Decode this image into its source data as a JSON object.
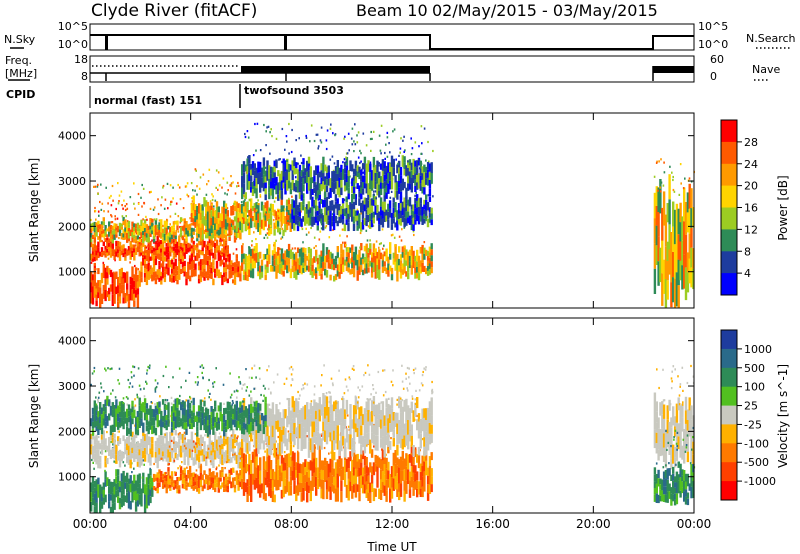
{
  "header": {
    "station": "Clyde River (fitACF)",
    "beam": "Beam 10",
    "dates": "02/May/2015 - 03/May/2015"
  },
  "strip_panels": {
    "nsky_label": "N.Sky",
    "nsky_ticks": [
      "10^5",
      "10^0"
    ],
    "freq_label_line1": "Freq.",
    "freq_label_line2": "[MHz]",
    "freq_ticks": [
      "18",
      "8"
    ],
    "nsearch_label": "N.Search",
    "nsearch_ticks": [
      "10^5",
      "10^0"
    ],
    "nave_label": "Nave",
    "nave_ticks": [
      "60",
      "0"
    ],
    "cpid_label": "CPID",
    "cpid_modes": [
      {
        "name": "normal (fast) 151",
        "start_hour": 0
      },
      {
        "name": "twofsound 3503",
        "start_hour": 6
      }
    ]
  },
  "power_colorbar": {
    "title": "Power [dB]",
    "ticks": [
      "28",
      "24",
      "20",
      "16",
      "12",
      "8",
      "4"
    ],
    "colors": [
      "#ff0000",
      "#ff5a00",
      "#ff9a00",
      "#ffd400",
      "#9ccc22",
      "#2e8b57",
      "#1e3c9e",
      "#0000ff"
    ]
  },
  "velocity_colorbar": {
    "title": "Velocity [m s^-1]",
    "ticks": [
      "1000",
      "500",
      "100",
      "25",
      "-25",
      "-100",
      "-500",
      "-1000"
    ],
    "colors": [
      "#1e3c9e",
      "#2a6a8a",
      "#2e8b57",
      "#52c020",
      "#c9c9c0",
      "#ffb100",
      "#ff7a00",
      "#ff4000",
      "#ff0000"
    ]
  },
  "chart_data": {
    "type": "heatmap",
    "xlabel": "Time UT",
    "ylabel": "Slant Range [km]",
    "x_ticks": [
      "00:00",
      "04:00",
      "08:00",
      "12:00",
      "16:00",
      "20:00",
      "00:00"
    ],
    "xlim_hours": [
      0,
      24
    ],
    "ylim_km": [
      200,
      4500
    ],
    "y_ticks": [
      1000,
      2000,
      3000,
      4000
    ],
    "data_gaps_hours": [
      [
        13.6,
        22.4
      ]
    ],
    "power_bands": [
      {
        "t0": 0.0,
        "t1": 2.0,
        "r0": 300,
        "r1": 1000,
        "level": "high"
      },
      {
        "t0": 0.0,
        "t1": 5.5,
        "r0": 1300,
        "r1": 1700,
        "level": "high"
      },
      {
        "t0": 2.0,
        "t1": 6.0,
        "r0": 800,
        "r1": 1300,
        "level": "high"
      },
      {
        "t0": 0.0,
        "t1": 6.0,
        "r0": 1700,
        "r1": 2100,
        "level": "mid"
      },
      {
        "t0": 4.0,
        "t1": 8.0,
        "r0": 1900,
        "r1": 2500,
        "level": "mid"
      },
      {
        "t0": 6.0,
        "t1": 13.6,
        "r0": 900,
        "r1": 1500,
        "level": "mid"
      },
      {
        "t0": 8.0,
        "t1": 13.6,
        "r0": 2000,
        "r1": 2600,
        "level": "low"
      },
      {
        "t0": 6.0,
        "t1": 13.6,
        "r0": 2700,
        "r1": 3400,
        "level": "low"
      },
      {
        "t0": 22.4,
        "t1": 24.0,
        "r0": 500,
        "r1": 2700,
        "level": "mid"
      }
    ],
    "velocity_bands": [
      {
        "t0": 0.0,
        "t1": 2.5,
        "r0": 300,
        "r1": 1000,
        "level": "positive"
      },
      {
        "t0": 0.0,
        "t1": 6.0,
        "r0": 1300,
        "r1": 1900,
        "level": "zero"
      },
      {
        "t0": 2.5,
        "t1": 6.0,
        "r0": 700,
        "r1": 1100,
        "level": "negative"
      },
      {
        "t0": 6.0,
        "t1": 13.6,
        "r0": 600,
        "r1": 1500,
        "level": "negative"
      },
      {
        "t0": 6.0,
        "t1": 13.6,
        "r0": 1600,
        "r1": 2600,
        "level": "zero"
      },
      {
        "t0": 0.0,
        "t1": 7.0,
        "r0": 2000,
        "r1": 2600,
        "level": "positive"
      },
      {
        "t0": 22.4,
        "t1": 24.0,
        "r0": 1400,
        "r1": 2600,
        "level": "zero"
      },
      {
        "t0": 22.4,
        "t1": 24.0,
        "r0": 500,
        "r1": 1200,
        "level": "positive"
      }
    ]
  }
}
